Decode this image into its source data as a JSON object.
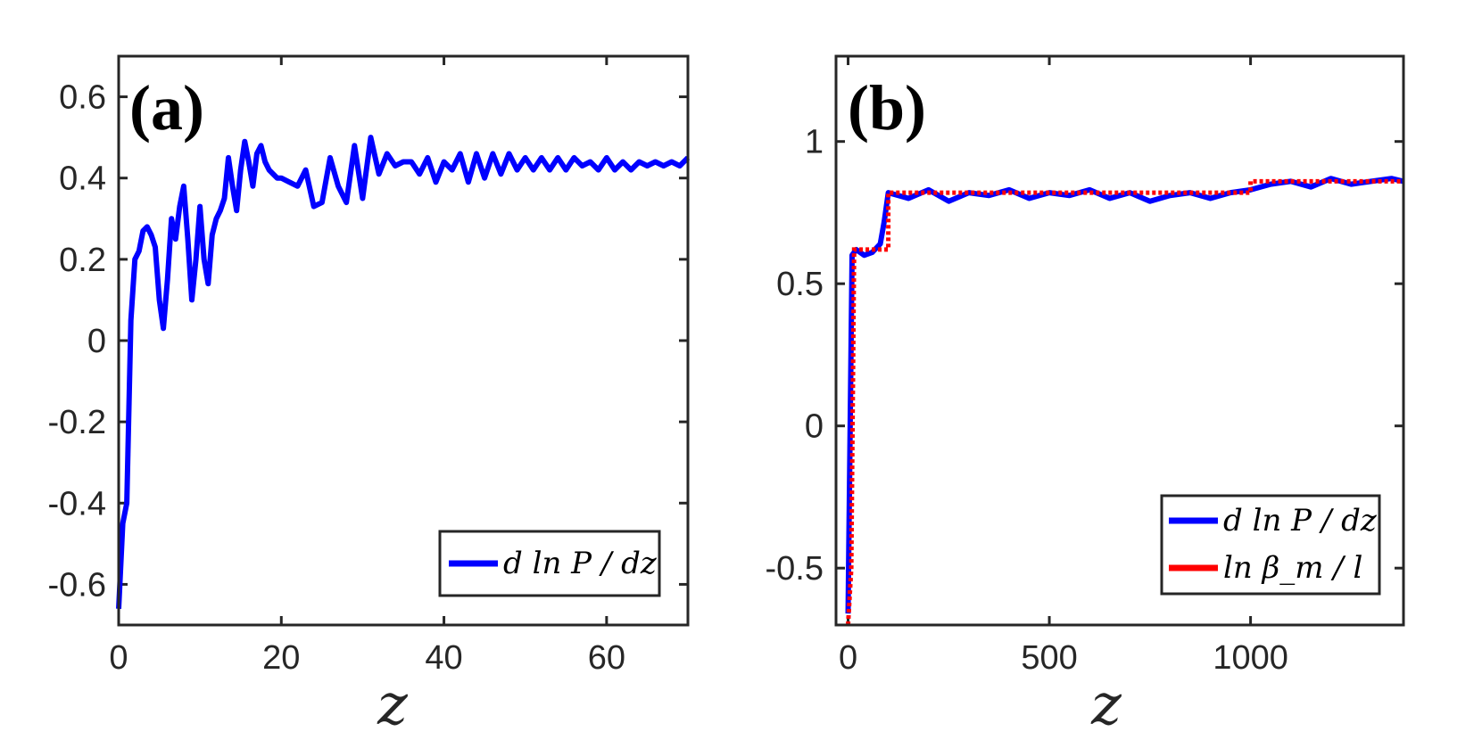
{
  "chart_data": [
    {
      "type": "line",
      "panel_label": "(a)",
      "xlabel": "z",
      "ylabel": "",
      "xlim": [
        0,
        70
      ],
      "ylim": [
        -0.7,
        0.7
      ],
      "xticks": [
        0,
        20,
        40,
        60
      ],
      "xtick_labels": [
        "0",
        "20",
        "40",
        "60"
      ],
      "yticks": [
        -0.6,
        -0.4,
        -0.2,
        0,
        0.2,
        0.4,
        0.6
      ],
      "ytick_labels": [
        "-0.6",
        "-0.4",
        "-0.2",
        "0",
        "0.2",
        "0.4",
        "0.6"
      ],
      "legend_position": "bottom-right",
      "series": [
        {
          "name": "d ln P / dz",
          "color": "#0000ff",
          "x": [
            0,
            0.5,
            1,
            1.5,
            2,
            2.5,
            3,
            3.5,
            4,
            4.5,
            5,
            5.5,
            6,
            6.5,
            7,
            7.5,
            8,
            8.5,
            9,
            9.5,
            10,
            10.5,
            11,
            11.5,
            12,
            12.5,
            13,
            13.5,
            14,
            14.5,
            15,
            15.5,
            16,
            16.5,
            17,
            17.5,
            18,
            18.5,
            19,
            19.5,
            20,
            21,
            22,
            23,
            24,
            25,
            26,
            27,
            28,
            29,
            30,
            31,
            32,
            33,
            34,
            35,
            36,
            37,
            38,
            39,
            40,
            41,
            42,
            43,
            44,
            45,
            46,
            47,
            48,
            49,
            50,
            51,
            52,
            53,
            54,
            55,
            56,
            57,
            58,
            59,
            60,
            61,
            62,
            63,
            64,
            65,
            66,
            67,
            68,
            69,
            70
          ],
          "values": [
            -0.66,
            -0.45,
            -0.4,
            0.05,
            0.2,
            0.22,
            0.27,
            0.28,
            0.26,
            0.23,
            0.1,
            0.03,
            0.15,
            0.3,
            0.25,
            0.33,
            0.38,
            0.25,
            0.1,
            0.2,
            0.33,
            0.2,
            0.14,
            0.26,
            0.3,
            0.32,
            0.35,
            0.45,
            0.38,
            0.32,
            0.42,
            0.49,
            0.44,
            0.38,
            0.46,
            0.48,
            0.44,
            0.42,
            0.41,
            0.4,
            0.4,
            0.39,
            0.38,
            0.42,
            0.33,
            0.34,
            0.45,
            0.38,
            0.34,
            0.48,
            0.35,
            0.5,
            0.41,
            0.46,
            0.43,
            0.44,
            0.44,
            0.41,
            0.45,
            0.39,
            0.44,
            0.42,
            0.46,
            0.39,
            0.46,
            0.4,
            0.46,
            0.41,
            0.46,
            0.42,
            0.45,
            0.42,
            0.45,
            0.42,
            0.45,
            0.42,
            0.45,
            0.43,
            0.44,
            0.42,
            0.45,
            0.42,
            0.44,
            0.42,
            0.44,
            0.43,
            0.44,
            0.43,
            0.44,
            0.43,
            0.45
          ]
        }
      ]
    },
    {
      "type": "line",
      "panel_label": "(b)",
      "xlabel": "z",
      "ylabel": "",
      "xlim": [
        -30,
        1380
      ],
      "ylim": [
        -0.7,
        1.3
      ],
      "xticks": [
        0,
        500,
        1000
      ],
      "xtick_labels": [
        "0",
        "500",
        "1000"
      ],
      "yticks": [
        -0.5,
        0,
        0.5,
        1
      ],
      "ytick_labels": [
        "-0.5",
        "0",
        "0.5",
        "1"
      ],
      "legend_position": "bottom-right",
      "series": [
        {
          "name": "d ln P / dz",
          "color": "#0000ff",
          "x": [
            0,
            10,
            20,
            40,
            60,
            80,
            90,
            100,
            150,
            200,
            250,
            300,
            350,
            400,
            450,
            500,
            550,
            600,
            650,
            700,
            750,
            800,
            850,
            900,
            950,
            1000,
            1050,
            1100,
            1150,
            1200,
            1250,
            1300,
            1350,
            1380
          ],
          "values": [
            -0.66,
            0.6,
            0.62,
            0.6,
            0.61,
            0.64,
            0.72,
            0.82,
            0.8,
            0.83,
            0.79,
            0.82,
            0.81,
            0.83,
            0.8,
            0.82,
            0.81,
            0.83,
            0.8,
            0.82,
            0.79,
            0.81,
            0.82,
            0.8,
            0.82,
            0.83,
            0.85,
            0.86,
            0.84,
            0.87,
            0.85,
            0.86,
            0.87,
            0.86
          ]
        },
        {
          "name": "ln β_m / l",
          "color": "#ff0000",
          "x": [
            0,
            8,
            15,
            100,
            100,
            1000,
            1000,
            1380
          ],
          "values": [
            -0.7,
            -0.5,
            0.62,
            0.62,
            0.82,
            0.82,
            0.86,
            0.86
          ]
        }
      ]
    }
  ]
}
